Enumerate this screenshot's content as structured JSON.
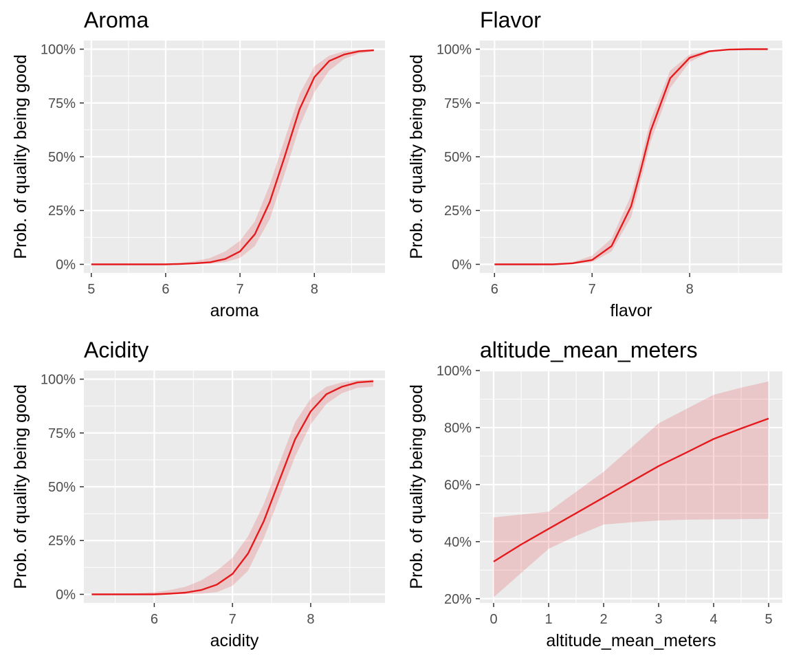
{
  "colors": {
    "panel_bg": "#EBEBEB",
    "grid": "#FFFFFF",
    "line": "#E41A1C",
    "ribbon": "#E41A1C",
    "tick_text": "#4D4D4D",
    "tick_mark": "#333333"
  },
  "chart_data": [
    {
      "type": "line",
      "title": "Aroma",
      "xlabel": "aroma",
      "ylabel": "Prob. of quality being good",
      "xlim": [
        4.9,
        8.95
      ],
      "ylim": [
        -0.04,
        1.04
      ],
      "x_ticks": [
        5,
        6,
        7,
        8
      ],
      "x_tick_labels": [
        "5",
        "6",
        "7",
        "8"
      ],
      "y_ticks": [
        0,
        0.25,
        0.5,
        0.75,
        1
      ],
      "y_tick_labels": [
        "0%",
        "25%",
        "50%",
        "75%",
        "100%"
      ],
      "x": [
        5.0,
        5.2,
        5.4,
        5.6,
        5.8,
        6.0,
        6.2,
        6.4,
        6.6,
        6.8,
        7.0,
        7.2,
        7.4,
        7.6,
        7.8,
        8.0,
        8.2,
        8.4,
        8.6,
        8.8
      ],
      "y": [
        0.0,
        0.0,
        0.0,
        0.0,
        0.0,
        0.0,
        0.002,
        0.005,
        0.01,
        0.025,
        0.06,
        0.14,
        0.29,
        0.5,
        0.72,
        0.87,
        0.945,
        0.975,
        0.99,
        0.995
      ],
      "lower": [
        0.0,
        0.0,
        0.0,
        0.0,
        0.0,
        0.0,
        0.0,
        0.001,
        0.003,
        0.01,
        0.03,
        0.085,
        0.21,
        0.42,
        0.64,
        0.8,
        0.9,
        0.955,
        0.98,
        0.99
      ],
      "upper": [
        0.0,
        0.0,
        0.0,
        0.0,
        0.001,
        0.003,
        0.007,
        0.015,
        0.03,
        0.06,
        0.11,
        0.2,
        0.37,
        0.58,
        0.79,
        0.92,
        0.97,
        0.99,
        0.997,
        0.999
      ]
    },
    {
      "type": "line",
      "title": "Flavor",
      "xlabel": "flavor",
      "ylabel": "Prob. of quality being good",
      "xlim": [
        5.85,
        8.95
      ],
      "ylim": [
        -0.04,
        1.04
      ],
      "x_ticks": [
        6,
        7,
        8
      ],
      "x_tick_labels": [
        "6",
        "7",
        "8"
      ],
      "y_ticks": [
        0,
        0.25,
        0.5,
        0.75,
        1
      ],
      "y_tick_labels": [
        "0%",
        "25%",
        "50%",
        "75%",
        "100%"
      ],
      "x": [
        6.0,
        6.2,
        6.4,
        6.6,
        6.8,
        7.0,
        7.2,
        7.4,
        7.5,
        7.6,
        7.8,
        8.0,
        8.2,
        8.4,
        8.6,
        8.8
      ],
      "y": [
        0.0,
        0.0,
        0.0,
        0.0,
        0.005,
        0.02,
        0.085,
        0.27,
        0.44,
        0.62,
        0.865,
        0.96,
        0.99,
        0.998,
        1.0,
        1.0
      ],
      "lower": [
        0.0,
        0.0,
        0.0,
        0.0,
        0.002,
        0.01,
        0.06,
        0.22,
        0.39,
        0.57,
        0.82,
        0.94,
        0.985,
        0.996,
        0.999,
        1.0
      ],
      "upper": [
        0.0,
        0.0,
        0.0,
        0.001,
        0.01,
        0.04,
        0.12,
        0.32,
        0.49,
        0.67,
        0.9,
        0.975,
        0.995,
        0.999,
        1.0,
        1.0
      ]
    },
    {
      "type": "line",
      "title": "Acidity",
      "xlabel": "acidity",
      "ylabel": "Prob. of quality being good",
      "xlim": [
        5.1,
        8.95
      ],
      "ylim": [
        -0.04,
        1.04
      ],
      "x_ticks": [
        6,
        7,
        8
      ],
      "x_tick_labels": [
        "6",
        "7",
        "8"
      ],
      "y_ticks": [
        0,
        0.25,
        0.5,
        0.75,
        1
      ],
      "y_tick_labels": [
        "0%",
        "25%",
        "50%",
        "75%",
        "100%"
      ],
      "x": [
        5.2,
        5.4,
        5.6,
        5.8,
        6.0,
        6.2,
        6.4,
        6.6,
        6.8,
        7.0,
        7.2,
        7.4,
        7.6,
        7.8,
        8.0,
        8.2,
        8.4,
        8.6,
        8.8
      ],
      "y": [
        0.0,
        0.0,
        0.0,
        0.0,
        0.0,
        0.003,
        0.008,
        0.02,
        0.045,
        0.095,
        0.19,
        0.34,
        0.53,
        0.72,
        0.85,
        0.93,
        0.965,
        0.985,
        0.99
      ],
      "lower": [
        0.0,
        0.0,
        0.0,
        0.0,
        0.0,
        0.0,
        0.001,
        0.003,
        0.01,
        0.04,
        0.11,
        0.26,
        0.45,
        0.64,
        0.79,
        0.885,
        0.935,
        0.96,
        0.965
      ],
      "upper": [
        0.0,
        0.0,
        0.002,
        0.005,
        0.01,
        0.02,
        0.035,
        0.065,
        0.11,
        0.17,
        0.27,
        0.42,
        0.61,
        0.8,
        0.91,
        0.965,
        0.985,
        0.995,
        0.998
      ]
    },
    {
      "type": "line",
      "title": "altitude_mean_meters",
      "xlabel": "altitude_mean_meters",
      "ylabel": "Prob. of quality being good",
      "xlim": [
        -0.25,
        5.25
      ],
      "ylim": [
        0.185,
        1.0
      ],
      "x_ticks": [
        0,
        1,
        2,
        3,
        4,
        5
      ],
      "x_tick_labels": [
        "0",
        "1",
        "2",
        "3",
        "4",
        "5"
      ],
      "y_ticks": [
        0.2,
        0.4,
        0.6,
        0.8,
        1.0
      ],
      "y_tick_labels": [
        "20%",
        "40%",
        "60%",
        "80%",
        "100%"
      ],
      "x": [
        0,
        0.5,
        1,
        1.5,
        2,
        2.5,
        3,
        3.5,
        4,
        4.5,
        5
      ],
      "y": [
        0.33,
        0.39,
        0.445,
        0.5,
        0.555,
        0.61,
        0.665,
        0.712,
        0.76,
        0.797,
        0.832
      ],
      "lower": [
        0.205,
        0.29,
        0.375,
        0.42,
        0.46,
        0.468,
        0.474,
        0.477,
        0.478,
        0.479,
        0.48
      ],
      "upper": [
        0.485,
        0.495,
        0.505,
        0.575,
        0.645,
        0.73,
        0.815,
        0.865,
        0.915,
        0.94,
        0.962
      ]
    }
  ]
}
